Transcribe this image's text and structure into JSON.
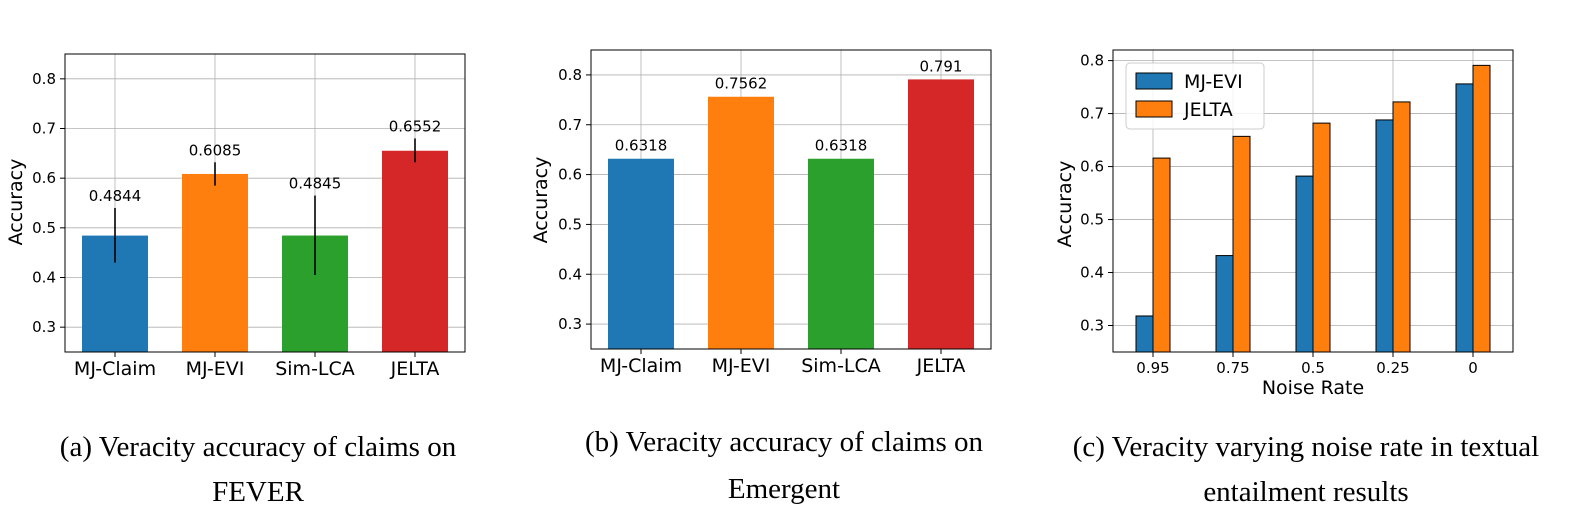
{
  "chart_data": [
    {
      "type": "bar",
      "caption_lines": [
        "(a) Veracity accuracy of claims on",
        "FEVER"
      ],
      "ylabel": "Accuracy",
      "xlabel": "",
      "ylim": [
        0.25,
        0.85
      ],
      "yticks": [
        0.3,
        0.4,
        0.5,
        0.6,
        0.7,
        0.8
      ],
      "grid": true,
      "categories": [
        "MJ-Claim",
        "MJ-EVI",
        "Sim-LCA",
        "JELTA"
      ],
      "values": [
        0.4844,
        0.6085,
        0.4845,
        0.6552
      ],
      "value_labels": [
        "0.4844",
        "0.6085",
        "0.4845",
        "0.6552"
      ],
      "error_bars": [
        [
          0.43,
          0.54
        ],
        [
          0.585,
          0.632
        ],
        [
          0.405,
          0.565
        ],
        [
          0.632,
          0.68
        ]
      ],
      "colors": [
        "#1f77b4",
        "#ff7f0e",
        "#2ca02c",
        "#d62728"
      ]
    },
    {
      "type": "bar",
      "caption_lines": [
        "(b) Veracity accuracy of claims on",
        "Emergent"
      ],
      "ylabel": "Accuracy",
      "xlabel": "",
      "ylim": [
        0.25,
        0.85
      ],
      "yticks": [
        0.3,
        0.4,
        0.5,
        0.6,
        0.7,
        0.8
      ],
      "grid": true,
      "categories": [
        "MJ-Claim",
        "MJ-EVI",
        "Sim-LCA",
        "JELTA"
      ],
      "values": [
        0.6318,
        0.7562,
        0.6318,
        0.791
      ],
      "value_labels": [
        "0.6318",
        "0.7562",
        "0.6318",
        "0.791"
      ],
      "colors": [
        "#1f77b4",
        "#ff7f0e",
        "#2ca02c",
        "#d62728"
      ]
    },
    {
      "type": "bar",
      "caption_lines": [
        "(c) Veracity varying noise rate in textual",
        "entailment results"
      ],
      "ylabel": "Accuracy",
      "xlabel": "Noise Rate",
      "ylim": [
        0.25,
        0.82
      ],
      "yticks": [
        0.3,
        0.4,
        0.5,
        0.6,
        0.7,
        0.8
      ],
      "grid": true,
      "categories": [
        "0.95",
        "0.75",
        "0.5",
        "0.25",
        "0"
      ],
      "legend_position": "top-left",
      "series": [
        {
          "name": "MJ-EVI",
          "color": "#1f77b4",
          "values": [
            0.318,
            0.432,
            0.582,
            0.688,
            0.756
          ]
        },
        {
          "name": "JELTA",
          "color": "#ff7f0e",
          "values": [
            0.616,
            0.657,
            0.682,
            0.722,
            0.791
          ]
        }
      ]
    }
  ]
}
